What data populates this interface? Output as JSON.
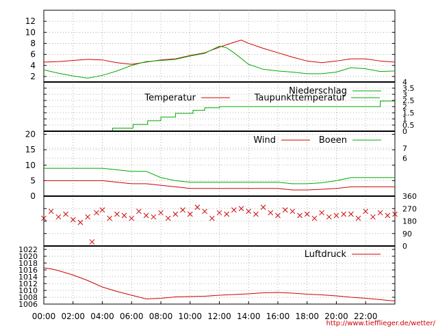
{
  "colors": {
    "red": "#cc0000",
    "green": "#00aa00",
    "grid": "#999999",
    "credit": "#cc0000"
  },
  "credit_text": "http://www.tiefflieger.de/wetter/",
  "chart_data": [
    {
      "type": "line",
      "id": "temperature",
      "ylim": [
        1,
        14
      ],
      "yticks": [
        "2",
        "4",
        "6",
        "8",
        "10",
        "12"
      ],
      "legend_placement": "top-right",
      "series": [
        {
          "name": "Temperatur",
          "color": "#cc0000",
          "x": [
            0,
            1,
            2,
            3,
            4,
            5,
            6,
            7,
            8,
            9,
            10,
            11,
            12,
            13,
            13.5,
            14,
            15,
            16,
            17,
            18,
            19,
            20,
            21,
            22,
            23,
            24
          ],
          "values": [
            4.6,
            4.7,
            4.9,
            5.1,
            5.0,
            4.5,
            4.2,
            4.6,
            5.0,
            5.2,
            5.8,
            6.3,
            7.3,
            8.2,
            8.6,
            8.0,
            7.1,
            6.3,
            5.5,
            4.8,
            4.5,
            4.8,
            5.2,
            5.2,
            4.8,
            4.6
          ]
        },
        {
          "name": "Taupunkttemperatur",
          "color": "#00aa00",
          "x": [
            0,
            1,
            2,
            3,
            4,
            5,
            6,
            7,
            8,
            9,
            10,
            11,
            12,
            12.5,
            13,
            14,
            15,
            16,
            17,
            18,
            19,
            20,
            21,
            22,
            23,
            24
          ],
          "values": [
            3.2,
            2.6,
            2.1,
            1.7,
            2.2,
            3.0,
            4.0,
            4.7,
            4.9,
            5.1,
            5.7,
            6.2,
            7.5,
            7.2,
            6.3,
            4.2,
            3.3,
            3.0,
            2.8,
            2.5,
            2.5,
            2.8,
            3.6,
            3.4,
            2.9,
            3.0
          ]
        }
      ]
    },
    {
      "type": "line",
      "id": "precipitation",
      "ylim": [
        0,
        4
      ],
      "yticks": [
        "0",
        "0.5",
        "1",
        "1.5",
        "2",
        "2.5",
        "3",
        "3.5",
        "4"
      ],
      "legend_placement": "top-right",
      "series": [
        {
          "name": "Niederschlag",
          "color": "#00aa00",
          "step": true,
          "x": [
            0,
            3.7,
            4.7,
            6.1,
            7.1,
            8.0,
            9.0,
            10.2,
            11.0,
            12.0,
            23.0,
            24
          ],
          "values": [
            0,
            0,
            0.25,
            0.55,
            0.85,
            1.15,
            1.45,
            1.7,
            1.9,
            2.0,
            2.45,
            2.45
          ]
        }
      ]
    },
    {
      "type": "line",
      "id": "wind",
      "ylim": [
        0,
        21
      ],
      "yticks": [
        "0",
        "5",
        "10",
        "15",
        "20"
      ],
      "beaufort_ticks": [
        "6",
        "7"
      ],
      "legend_placement": "top-right",
      "series": [
        {
          "name": "Wind",
          "color": "#cc0000",
          "x": [
            0,
            1,
            2,
            3,
            4,
            5,
            6,
            7,
            8,
            9,
            10,
            11,
            12,
            13,
            14,
            15,
            16,
            17,
            18,
            19,
            20,
            21,
            22,
            23,
            24
          ],
          "values": [
            5,
            5,
            5,
            5,
            5,
            4.5,
            4,
            4,
            3.5,
            3,
            2.5,
            2.5,
            2.5,
            2.5,
            2.5,
            2.5,
            2.5,
            2,
            2,
            2.2,
            2.5,
            3,
            3,
            3,
            3
          ]
        },
        {
          "name": "Boeen",
          "color": "#00aa00",
          "x": [
            0,
            1,
            2,
            3,
            4,
            5,
            6,
            7,
            8,
            9,
            10,
            11,
            12,
            13,
            14,
            15,
            16,
            17,
            18,
            19,
            20,
            21,
            22,
            23,
            24
          ],
          "values": [
            9,
            9,
            9,
            9,
            9,
            8.5,
            8,
            8,
            6,
            5,
            4.5,
            4.5,
            4.5,
            4.5,
            4.5,
            4.5,
            4.5,
            4,
            4,
            4.3,
            5,
            6,
            6,
            6,
            6
          ]
        }
      ]
    },
    {
      "type": "scatter",
      "id": "wind-direction",
      "ylim": [
        0,
        360
      ],
      "yticks": [
        "0",
        "90",
        "180",
        "270",
        "360"
      ],
      "series": [
        {
          "name": "",
          "color": "#cc0000",
          "marker": "x",
          "x": [
            0,
            0.5,
            1,
            1.5,
            2,
            2.5,
            3,
            3.3,
            3.6,
            4,
            4.5,
            5,
            5.5,
            6,
            6.5,
            7,
            7.5,
            8,
            8.5,
            9,
            9.5,
            10,
            10.5,
            11,
            11.5,
            12,
            12.5,
            13,
            13.5,
            14,
            14.5,
            15,
            15.5,
            16,
            16.5,
            17,
            17.5,
            18,
            18.5,
            19,
            19.5,
            20,
            20.5,
            21,
            21.5,
            22,
            22.5,
            23,
            23.5,
            24
          ],
          "values": [
            200,
            250,
            210,
            230,
            190,
            170,
            210,
            30,
            240,
            260,
            200,
            230,
            220,
            200,
            250,
            220,
            210,
            240,
            200,
            230,
            260,
            230,
            280,
            250,
            200,
            240,
            230,
            260,
            270,
            250,
            230,
            280,
            240,
            220,
            260,
            250,
            220,
            230,
            200,
            240,
            210,
            220,
            230,
            230,
            200,
            250,
            210,
            240,
            220,
            230
          ]
        }
      ]
    },
    {
      "type": "line",
      "id": "pressure",
      "ylim": [
        1006,
        1023
      ],
      "yticks": [
        "1006",
        "1008",
        "1010",
        "1012",
        "1014",
        "1016",
        "1018",
        "1020",
        "1022"
      ],
      "legend_placement": "top-right",
      "xticks": [
        "00:00",
        "02:00",
        "04:00",
        "06:00",
        "08:00",
        "10:00",
        "12:00",
        "14:00",
        "16:00",
        "18:00",
        "20:00",
        "22:00"
      ],
      "series": [
        {
          "name": "Luftdruck",
          "color": "#cc0000",
          "x": [
            0,
            0.5,
            1,
            2,
            3,
            4,
            5,
            6,
            7,
            8,
            9,
            10,
            11,
            12,
            13,
            14,
            15,
            16,
            17,
            18,
            19,
            20,
            21,
            22,
            23,
            24
          ],
          "values": [
            1016.6,
            1016.3,
            1015.8,
            1014.5,
            1012.9,
            1011.0,
            1009.7,
            1008.6,
            1007.5,
            1007.7,
            1008.1,
            1008.2,
            1008.3,
            1008.6,
            1008.8,
            1009.0,
            1009.3,
            1009.4,
            1009.2,
            1008.9,
            1008.7,
            1008.4,
            1008.0,
            1007.7,
            1007.3,
            1006.9
          ]
        }
      ]
    }
  ]
}
